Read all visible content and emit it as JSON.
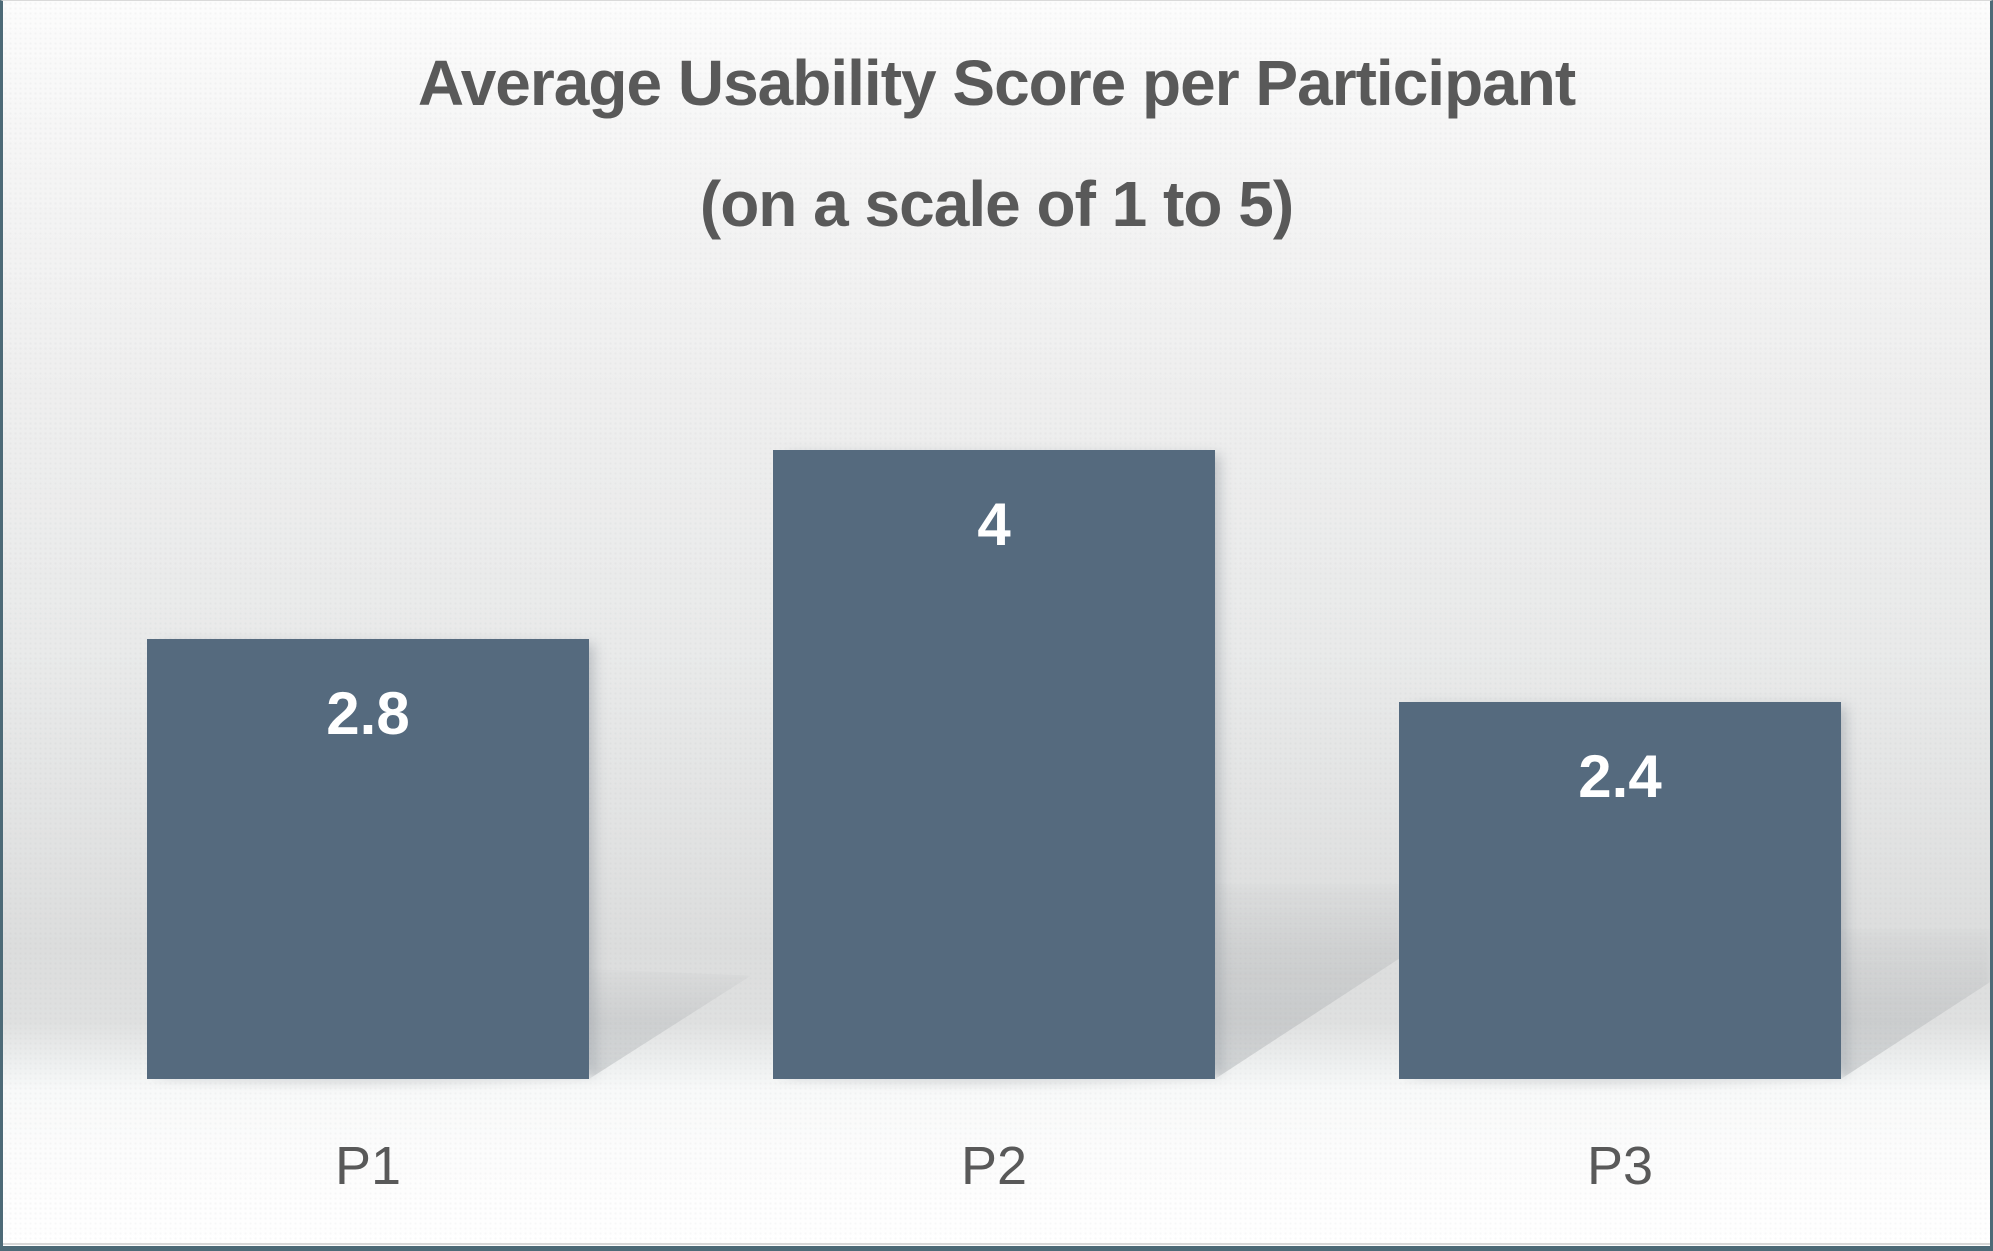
{
  "frame": {
    "border_color": "#4d6a77",
    "top_line_color": "#d9d9d9",
    "bottom_line_color": "#d8d8d8"
  },
  "chart_data": {
    "type": "bar",
    "title": "Average Usability Score per Participant",
    "subtitle": "(on a scale of 1 to 5)",
    "categories": [
      "P1",
      "P2",
      "P3"
    ],
    "values": [
      2.8,
      4,
      2.4
    ],
    "value_labels": [
      "2.8",
      "4",
      "2.4"
    ],
    "ylabel": "",
    "xlabel": "",
    "ylim": [
      0,
      5
    ],
    "grid": false,
    "axes_hidden": true,
    "legend": "none",
    "value_label_position": "inside-top",
    "bar_color": "#556a7e",
    "value_label_color": "#ffffff",
    "text_color": "#595959",
    "background_style": "gray-gradient-backdrop-with-floor-shadows"
  }
}
